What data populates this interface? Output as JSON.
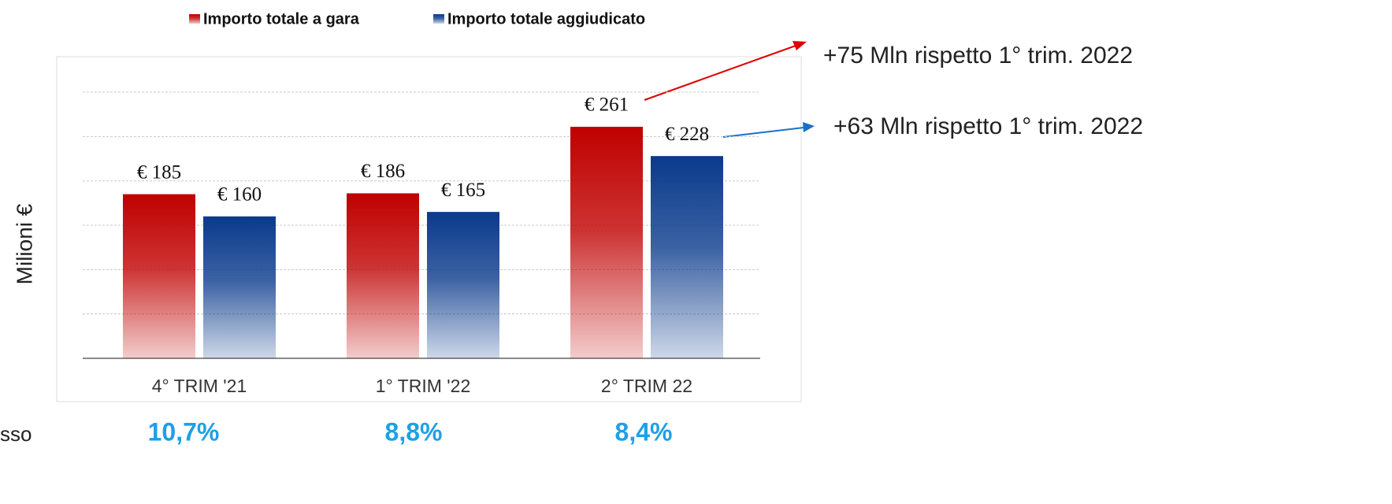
{
  "chart_data": {
    "type": "bar",
    "axis_label": "Milioni €",
    "categories": [
      "4° TRIM '21",
      "1° TRIM '22",
      "2° TRIM 22"
    ],
    "series": [
      {
        "name": "Importo totale a gara",
        "color": "#c00000",
        "values": [
          185,
          186,
          261
        ],
        "value_labels": [
          "€ 185",
          "€ 186",
          "€ 261"
        ]
      },
      {
        "name": "Importo totale aggiudicato",
        "color": "#0a3a8c",
        "values": [
          160,
          165,
          228
        ],
        "value_labels": [
          "€ 160",
          "€ 165",
          "€ 228"
        ]
      }
    ],
    "ylim": [
      0,
      340
    ],
    "yticks": [
      0,
      50,
      100,
      150,
      200,
      250,
      300
    ],
    "grid": true,
    "legend": "top",
    "annotations": [
      "+75 Mln rispetto 1° trim. 2022",
      "+63 Mln rispetto 1° trim. 2022"
    ],
    "row_label": "sso",
    "row_values": [
      "10,7%",
      "8,8%",
      "8,4%"
    ]
  }
}
